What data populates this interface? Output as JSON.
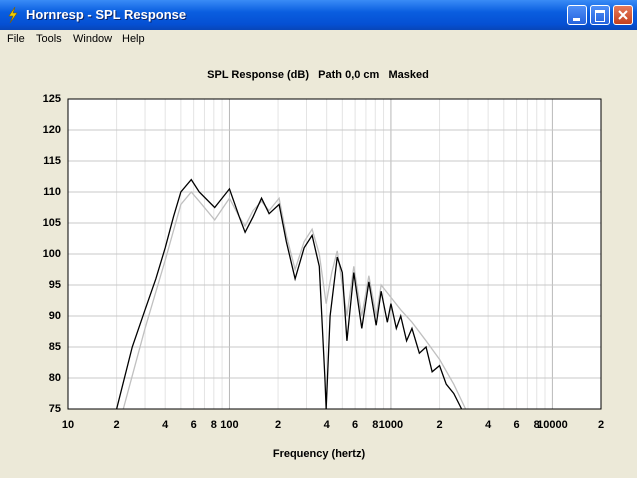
{
  "window": {
    "title": "Hornresp - SPL Response"
  },
  "menu": [
    "File",
    "Tools",
    "Window",
    "Help"
  ],
  "chart_data": {
    "type": "line",
    "title": "SPL Response (dB)   Path 0,0 cm   Masked",
    "x_label": "Frequency (hertz)",
    "x_scale": "log",
    "xlim": [
      10,
      20000
    ],
    "xticks": [
      10,
      {
        "value": 20,
        "label": "2"
      },
      {
        "value": 40,
        "label": "4"
      },
      {
        "value": 60,
        "label": "6"
      },
      {
        "value": 80,
        "label": "8"
      },
      100,
      {
        "value": 200,
        "label": "2"
      },
      {
        "value": 400,
        "label": "4"
      },
      {
        "value": 600,
        "label": "6"
      },
      {
        "value": 800,
        "label": "8"
      },
      1000,
      {
        "value": 2000,
        "label": "2"
      },
      {
        "value": 4000,
        "label": "4"
      },
      {
        "value": 6000,
        "label": "6"
      },
      {
        "value": 8000,
        "label": "8"
      },
      10000,
      {
        "value": 20000,
        "label": "2"
      }
    ],
    "x_minor_grid": [
      30,
      50,
      70,
      90,
      300,
      500,
      700,
      900,
      3000,
      5000,
      7000,
      9000
    ],
    "ylim": [
      75,
      125
    ],
    "yticks": [
      75,
      80,
      85,
      90,
      95,
      100,
      105,
      110,
      115,
      120,
      125
    ],
    "grid": true,
    "series": [
      {
        "color": "#c0c0c0",
        "x": [
          22,
          26,
          30,
          40,
          50,
          58,
          65,
          81,
          100,
          115,
          125,
          140,
          158,
          176,
          203,
          225,
          255,
          290,
          325,
          360,
          397,
          430,
          465,
          534,
          589,
          660,
          730,
          810,
          870,
          1000,
          1150,
          1350,
          1650,
          2000,
          2450,
          2900
        ],
        "values": [
          75,
          82,
          88,
          99,
          108,
          110,
          108.5,
          105.5,
          109,
          106,
          104.5,
          107,
          108.5,
          107,
          109,
          103,
          97.5,
          102,
          104,
          100,
          92,
          97,
          100.5,
          90,
          98,
          90,
          96.5,
          90,
          95,
          93,
          91,
          89,
          86,
          83,
          79,
          75
        ]
      },
      {
        "color": "#000000",
        "x": [
          20,
          25,
          30,
          35,
          40,
          45,
          50,
          58,
          65,
          81,
          100,
          115,
          125,
          140,
          158,
          176,
          203,
          225,
          255,
          290,
          325,
          360,
          390,
          397,
          420,
          465,
          500,
          534,
          589,
          660,
          730,
          810,
          870,
          950,
          1000,
          1080,
          1150,
          1250,
          1350,
          1500,
          1650,
          1800,
          2000,
          2200,
          2450,
          2740
        ],
        "values": [
          75,
          85,
          91,
          96,
          101,
          106,
          110,
          112,
          110,
          107.5,
          110.5,
          106,
          103.5,
          106,
          109,
          106.5,
          108,
          102,
          96,
          101,
          103,
          98,
          80,
          75,
          90,
          99.5,
          97,
          86,
          97,
          88,
          95.5,
          88.5,
          94,
          89,
          92,
          88,
          90,
          86,
          88,
          84,
          85,
          81,
          82,
          79,
          77.5,
          75
        ]
      }
    ]
  }
}
